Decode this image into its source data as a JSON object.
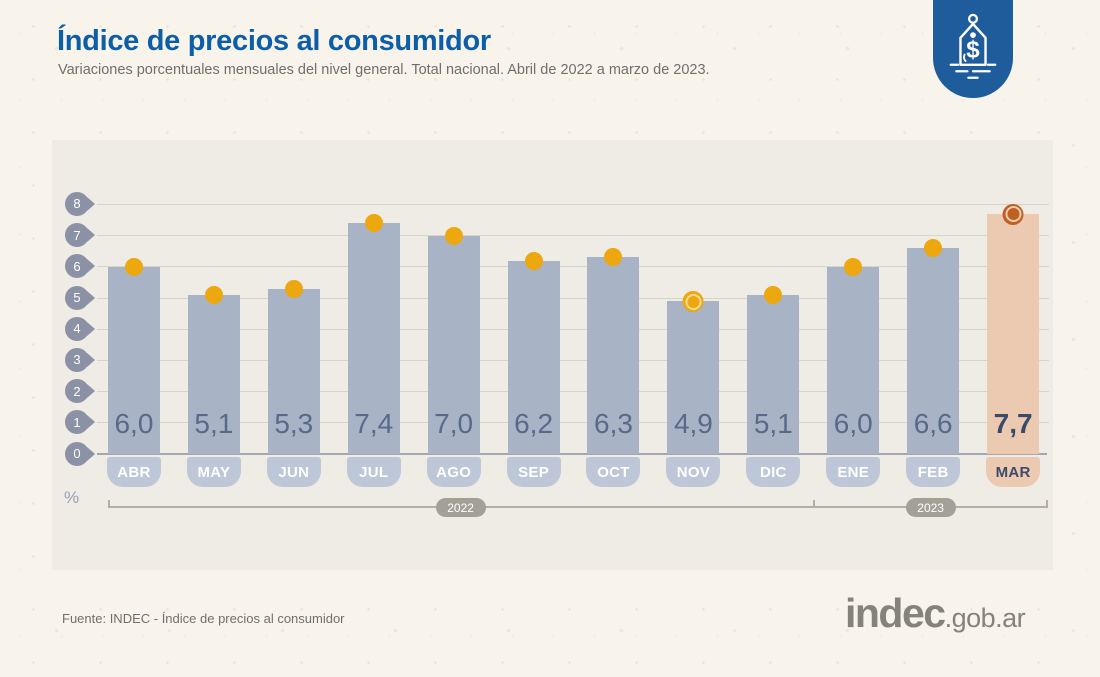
{
  "header": {
    "title": "Índice de precios al consumidor",
    "subtitle": "Variaciones porcentuales mensuales del nivel general. Total nacional. Abril de 2022 a marzo de 2023."
  },
  "badge": {
    "icon": "price-tag-icon",
    "color": "#1e5c9c"
  },
  "chart_data": {
    "type": "bar",
    "title": "Índice de precios al consumidor",
    "subtitle": "Variaciones porcentuales mensuales del nivel general. Total nacional. Abril de 2022 a marzo de 2023.",
    "categories": [
      "ABR",
      "MAY",
      "JUN",
      "JUL",
      "AGO",
      "SEP",
      "OCT",
      "NOV",
      "DIC",
      "ENE",
      "FEB",
      "MAR"
    ],
    "values": [
      6.0,
      5.1,
      5.3,
      7.4,
      7.0,
      6.2,
      6.3,
      4.9,
      5.1,
      6.0,
      6.6,
      7.7
    ],
    "display_values": [
      "6,0",
      "5,1",
      "5,3",
      "7,4",
      "7,0",
      "6,2",
      "6,3",
      "4,9",
      "5,1",
      "6,0",
      "6,6",
      "7,7"
    ],
    "ylabel": "%",
    "ylim": [
      0,
      8
    ],
    "yticks": [
      0,
      1,
      2,
      3,
      4,
      5,
      6,
      7,
      8
    ],
    "grid": true,
    "highlight_index": 11,
    "min_marker_index": 7,
    "max_marker_index": 11,
    "year_axis": [
      {
        "label": "2022",
        "start": 0,
        "end": 8
      },
      {
        "label": "2023",
        "start": 9,
        "end": 11
      }
    ],
    "colors": {
      "bar": "#a8b3c5",
      "bar_highlight": "#ecc9b1",
      "dot": "#eca80e",
      "max_marker": "#c06020",
      "pin": "#8b92a6",
      "month_pill": "#bdc7d7",
      "value_text": "#5a6989",
      "year_pill": "#a3a197"
    }
  },
  "footer": {
    "source": "Fuente: INDEC - Índice de precios al consumidor",
    "logo_main": "indec",
    "logo_suffix": ".gob.ar"
  }
}
